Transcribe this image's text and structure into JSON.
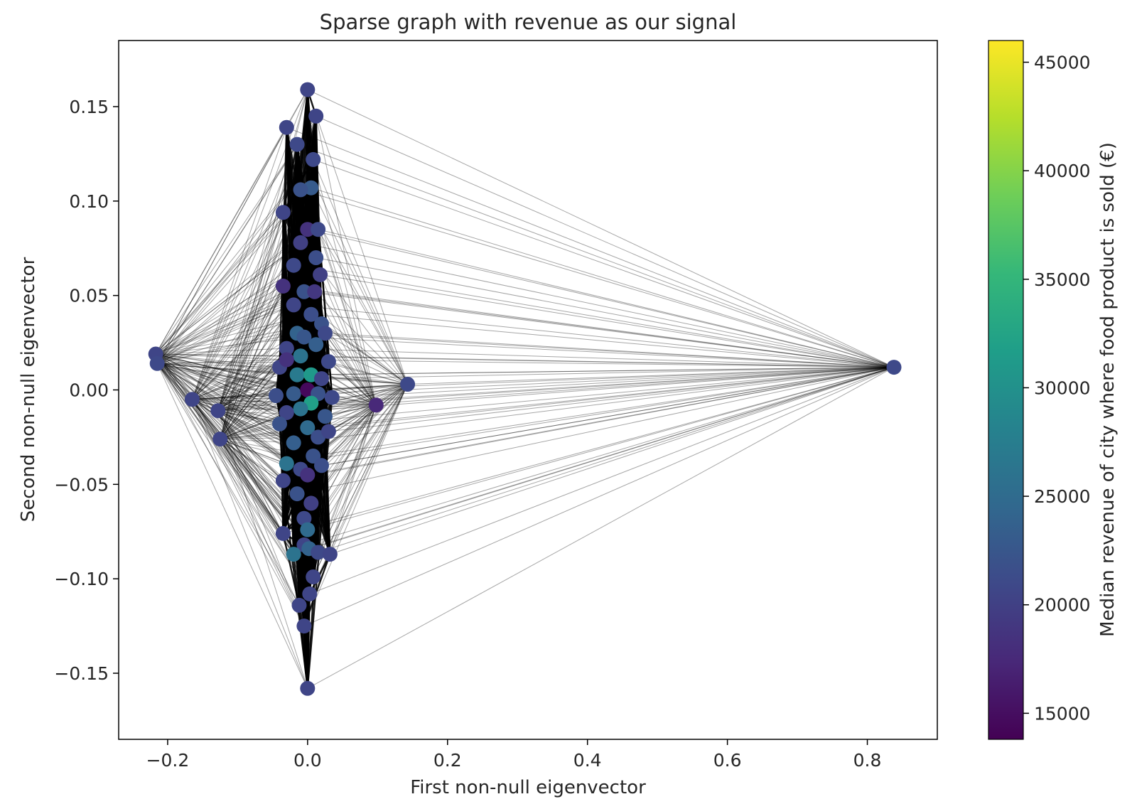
{
  "chart_data": {
    "type": "scatter",
    "title": "Sparse graph with revenue as our signal",
    "xlabel": "First non-null eigenvector",
    "ylabel": "Second non-null eigenvector",
    "xlim": [
      -0.27,
      0.9
    ],
    "ylim": [
      -0.185,
      0.185
    ],
    "xticks": [
      -0.2,
      0.0,
      0.2,
      0.4,
      0.6,
      0.8
    ],
    "xtick_labels": [
      "−0.2",
      "0.0",
      "0.2",
      "0.4",
      "0.6",
      "0.8"
    ],
    "yticks": [
      0.15,
      0.1,
      0.05,
      0.0,
      -0.05,
      -0.1,
      -0.15
    ],
    "ytick_labels": [
      "0.15",
      "0.10",
      "0.05",
      "0.00",
      "−0.05",
      "−0.10",
      "−0.15"
    ],
    "grid": false,
    "colorbar": {
      "label": "Median revenue of city where food product is sold (€)",
      "range": [
        13800,
        46000
      ],
      "ticks": [
        15000,
        20000,
        25000,
        30000,
        35000,
        40000,
        45000
      ],
      "tick_labels": [
        "15000",
        "20000",
        "25000",
        "30000",
        "35000",
        "40000",
        "45000"
      ],
      "colormap": "viridis",
      "colors": [
        "#440154",
        "#482878",
        "#3e4989",
        "#31688e",
        "#26828e",
        "#1f9e89",
        "#35b779",
        "#6ece58",
        "#b5de2b",
        "#fde725"
      ]
    },
    "edge_color": "#000000",
    "points": [
      {
        "x": 0.0,
        "y": 0.159,
        "v": 20500
      },
      {
        "x": 0.012,
        "y": 0.145,
        "v": 20500
      },
      {
        "x": -0.03,
        "y": 0.139,
        "v": 20500
      },
      {
        "x": -0.015,
        "y": 0.13,
        "v": 21000
      },
      {
        "x": 0.008,
        "y": 0.122,
        "v": 21000
      },
      {
        "x": 0.005,
        "y": 0.107,
        "v": 23000
      },
      {
        "x": -0.01,
        "y": 0.106,
        "v": 22000
      },
      {
        "x": -0.035,
        "y": 0.094,
        "v": 20500
      },
      {
        "x": 0.0,
        "y": 0.085,
        "v": 18500
      },
      {
        "x": 0.015,
        "y": 0.085,
        "v": 21000
      },
      {
        "x": -0.01,
        "y": 0.078,
        "v": 20000
      },
      {
        "x": 0.012,
        "y": 0.07,
        "v": 21500
      },
      {
        "x": -0.02,
        "y": 0.066,
        "v": 21000
      },
      {
        "x": 0.018,
        "y": 0.061,
        "v": 20000
      },
      {
        "x": -0.035,
        "y": 0.055,
        "v": 18500
      },
      {
        "x": -0.005,
        "y": 0.052,
        "v": 22000
      },
      {
        "x": 0.01,
        "y": 0.052,
        "v": 19000
      },
      {
        "x": -0.02,
        "y": 0.045,
        "v": 20500
      },
      {
        "x": 0.005,
        "y": 0.04,
        "v": 21500
      },
      {
        "x": 0.02,
        "y": 0.035,
        "v": 22000
      },
      {
        "x": -0.015,
        "y": 0.03,
        "v": 24000
      },
      {
        "x": 0.025,
        "y": 0.03,
        "v": 21000
      },
      {
        "x": -0.03,
        "y": 0.022,
        "v": 20500
      },
      {
        "x": -0.005,
        "y": 0.028,
        "v": 22500
      },
      {
        "x": 0.012,
        "y": 0.024,
        "v": 23500
      },
      {
        "x": -0.01,
        "y": 0.018,
        "v": 26000
      },
      {
        "x": -0.04,
        "y": 0.012,
        "v": 20500
      },
      {
        "x": -0.03,
        "y": 0.016,
        "v": 18500
      },
      {
        "x": 0.03,
        "y": 0.015,
        "v": 21000
      },
      {
        "x": -0.015,
        "y": 0.008,
        "v": 27000
      },
      {
        "x": 0.005,
        "y": 0.008,
        "v": 31000
      },
      {
        "x": 0.02,
        "y": 0.006,
        "v": 20500
      },
      {
        "x": -0.045,
        "y": -0.003,
        "v": 21500
      },
      {
        "x": -0.02,
        "y": -0.002,
        "v": 23000
      },
      {
        "x": 0.0,
        "y": 0.0,
        "v": 14500
      },
      {
        "x": 0.015,
        "y": -0.002,
        "v": 22000
      },
      {
        "x": 0.035,
        "y": -0.004,
        "v": 21000
      },
      {
        "x": 0.005,
        "y": -0.007,
        "v": 32000
      },
      {
        "x": -0.01,
        "y": -0.01,
        "v": 26000
      },
      {
        "x": -0.03,
        "y": -0.012,
        "v": 20500
      },
      {
        "x": 0.025,
        "y": -0.014,
        "v": 22500
      },
      {
        "x": -0.04,
        "y": -0.018,
        "v": 22000
      },
      {
        "x": 0.0,
        "y": -0.02,
        "v": 25000
      },
      {
        "x": 0.015,
        "y": -0.025,
        "v": 21500
      },
      {
        "x": -0.02,
        "y": -0.028,
        "v": 23500
      },
      {
        "x": 0.03,
        "y": -0.022,
        "v": 20500
      },
      {
        "x": 0.008,
        "y": -0.035,
        "v": 22000
      },
      {
        "x": -0.03,
        "y": -0.039,
        "v": 26000
      },
      {
        "x": -0.01,
        "y": -0.042,
        "v": 21000
      },
      {
        "x": 0.0,
        "y": -0.045,
        "v": 18500
      },
      {
        "x": 0.02,
        "y": -0.04,
        "v": 21500
      },
      {
        "x": -0.035,
        "y": -0.048,
        "v": 20500
      },
      {
        "x": -0.015,
        "y": -0.055,
        "v": 22000
      },
      {
        "x": 0.005,
        "y": -0.06,
        "v": 20000
      },
      {
        "x": -0.005,
        "y": -0.068,
        "v": 21000
      },
      {
        "x": -0.035,
        "y": -0.076,
        "v": 20500
      },
      {
        "x": 0.0,
        "y": -0.074,
        "v": 25000
      },
      {
        "x": -0.005,
        "y": -0.082,
        "v": 20500
      },
      {
        "x": 0.002,
        "y": -0.084,
        "v": 24000
      },
      {
        "x": -0.02,
        "y": -0.087,
        "v": 26000
      },
      {
        "x": 0.015,
        "y": -0.086,
        "v": 21000
      },
      {
        "x": 0.032,
        "y": -0.087,
        "v": 20500
      },
      {
        "x": 0.008,
        "y": -0.099,
        "v": 20500
      },
      {
        "x": 0.003,
        "y": -0.108,
        "v": 20500
      },
      {
        "x": -0.012,
        "y": -0.114,
        "v": 20500
      },
      {
        "x": -0.005,
        "y": -0.125,
        "v": 20500
      },
      {
        "x": 0.0,
        "y": -0.158,
        "v": 20500
      },
      {
        "x": -0.217,
        "y": 0.019,
        "v": 20500
      },
      {
        "x": -0.215,
        "y": 0.014,
        "v": 21000
      },
      {
        "x": -0.165,
        "y": -0.005,
        "v": 20500
      },
      {
        "x": -0.128,
        "y": -0.011,
        "v": 20500
      },
      {
        "x": -0.125,
        "y": -0.026,
        "v": 20500
      },
      {
        "x": 0.098,
        "y": -0.008,
        "v": 17500
      },
      {
        "x": 0.143,
        "y": 0.003,
        "v": 21000
      },
      {
        "x": 0.838,
        "y": 0.012,
        "v": 21000
      }
    ]
  }
}
